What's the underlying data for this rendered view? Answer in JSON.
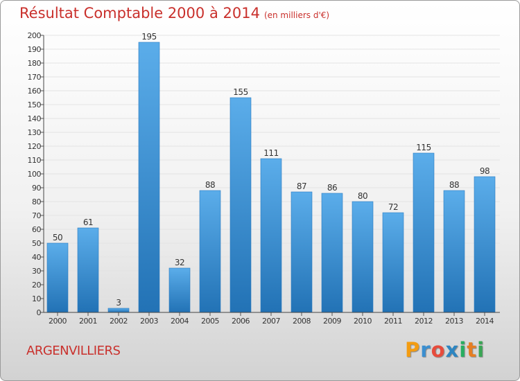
{
  "title": "Résultat Comptable 2000 à 2014",
  "subtitle": "(en milliers d'€)",
  "location": "ARGENVILLIERS",
  "logo": {
    "letters": [
      "P",
      "r",
      "o",
      "x",
      "i",
      "t",
      "i"
    ],
    "colors": [
      "#f39c12",
      "#3b8fd0",
      "#e74c3c",
      "#2e86c1",
      "#27ae60",
      "#e67e22",
      "#3aa655"
    ]
  },
  "colors": {
    "bar_top": "#5badea",
    "bar_bottom": "#2272b5",
    "title": "#c9302c"
  },
  "chart_data": {
    "type": "bar",
    "title": "Résultat Comptable 2000 à 2014",
    "subtitle": "(en milliers d'€)",
    "categories": [
      "2000",
      "2001",
      "2002",
      "2003",
      "2004",
      "2005",
      "2006",
      "2007",
      "2008",
      "2009",
      "2010",
      "2011",
      "2012",
      "2013",
      "2014"
    ],
    "values": [
      50,
      61,
      3,
      195,
      32,
      88,
      155,
      111,
      87,
      86,
      80,
      72,
      115,
      88,
      98
    ],
    "data_labels": [
      "50",
      "61",
      "3",
      "195",
      "32",
      "88",
      "155",
      "111",
      "87",
      "86",
      "80",
      "72",
      "115",
      "88",
      "98"
    ],
    "xlabel": "",
    "ylabel": "",
    "ylim": [
      0,
      200
    ],
    "yticks": [
      "0",
      "10",
      "20",
      "30",
      "40",
      "50",
      "60",
      "70",
      "80",
      "90",
      "100",
      "110",
      "120",
      "130",
      "140",
      "150",
      "160",
      "170",
      "180",
      "190",
      "200"
    ],
    "grid": true,
    "legend": "none"
  }
}
